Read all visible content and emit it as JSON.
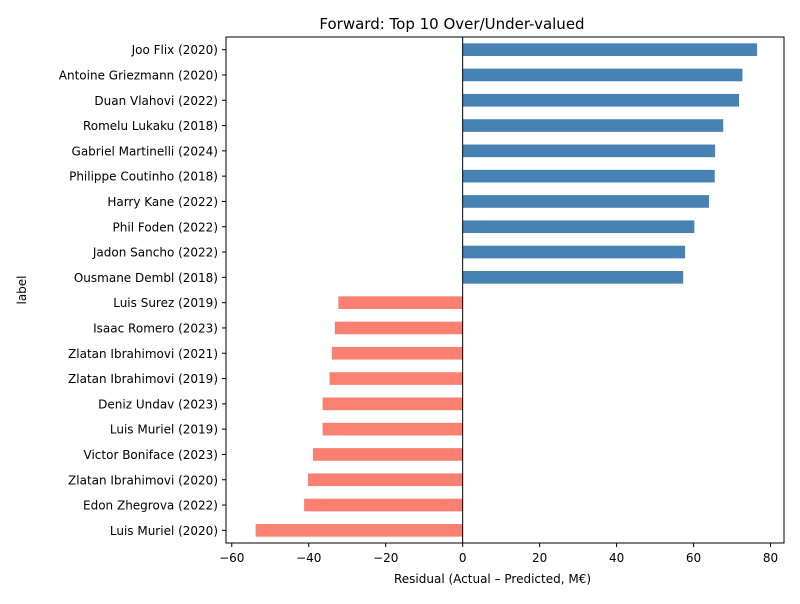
{
  "chart_data": {
    "type": "bar",
    "orientation": "horizontal",
    "title": "Forward: Top 10 Over/Under-valued",
    "xlabel": "Residual (Actual – Predicted, M€)",
    "ylabel": "label",
    "xlim": [
      -61.5,
      83.5
    ],
    "xticks": [
      -60,
      -40,
      -20,
      0,
      20,
      40,
      60,
      80
    ],
    "xtick_labels": [
      "−60",
      "−40",
      "−20",
      "0",
      "20",
      "40",
      "60",
      "80"
    ],
    "categories": [
      "Joo Flix (2020)",
      "Antoine Griezmann (2020)",
      "Duan Vlahovi (2022)",
      "Romelu Lukaku (2018)",
      "Gabriel Martinelli (2024)",
      "Philippe Coutinho (2018)",
      "Harry Kane (2022)",
      "Phil Foden (2022)",
      "Jadon Sancho (2022)",
      "Ousmane Dembl (2018)",
      "Luis Surez (2019)",
      "Isaac Romero (2023)",
      "Zlatan Ibrahimovi (2021)",
      "Zlatan Ibrahimovi (2019)",
      "Deniz Undav (2023)",
      "Luis Muriel (2019)",
      "Victor Boniface (2023)",
      "Zlatan Ibrahimovi (2020)",
      "Edon Zhegrova (2022)",
      "Luis Muriel (2020)"
    ],
    "values": [
      76.5,
      72.7,
      71.8,
      67.7,
      65.6,
      65.5,
      64.0,
      60.2,
      57.8,
      57.3,
      -32.3,
      -33.2,
      -34.0,
      -34.6,
      -36.4,
      -36.4,
      -38.9,
      -40.2,
      -41.2,
      -53.8
    ],
    "colors": {
      "positive": "#4682b4",
      "negative": "#fa8072",
      "zero_line": "#000000"
    },
    "grid": false,
    "legend": "none"
  }
}
